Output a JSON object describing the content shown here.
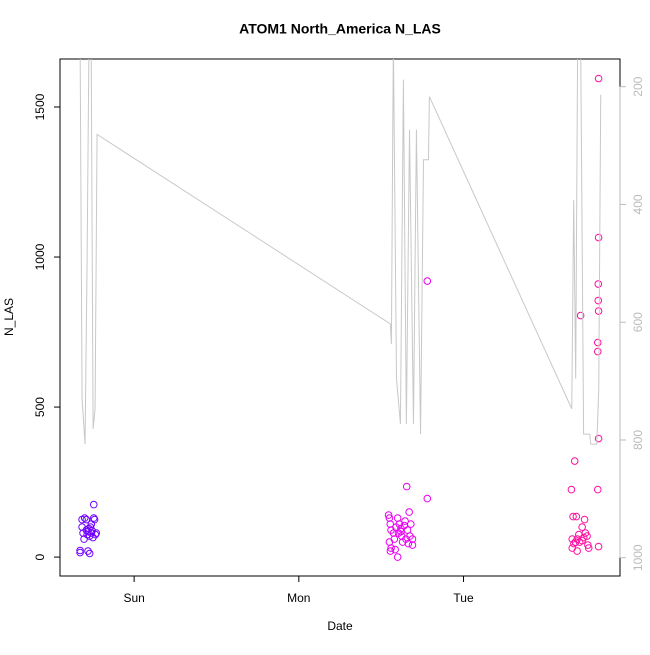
{
  "chart_data": {
    "type": "scatter",
    "title": "ATOM1 North_America N_LAS",
    "xlabel": "Date",
    "ylabel": "N_LAS",
    "xlim": [
      0.55,
      3.95
    ],
    "xticks": [
      {
        "value": 1,
        "label": "Sun"
      },
      {
        "value": 2,
        "label": "Mon"
      },
      {
        "value": 3,
        "label": "Tue"
      }
    ],
    "ylim": [
      -63,
      1660
    ],
    "yticks": [
      0,
      500,
      1000,
      1500
    ],
    "y2lim": [
      1031,
      153
    ],
    "y2ticks": [
      200,
      400,
      600,
      800,
      1000
    ],
    "series": [
      {
        "type": "scatter",
        "color": "#7000ff",
        "x": [
          0.672,
          0.672,
          0.684,
          0.684,
          0.69,
          0.696,
          0.7,
          0.71,
          0.715,
          0.72,
          0.72,
          0.725,
          0.73,
          0.73,
          0.735,
          0.74,
          0.745,
          0.75,
          0.755,
          0.755,
          0.76,
          0.765,
          0.77,
          0.71,
          0.74
        ],
        "values": [
          15,
          22,
          100,
          125,
          80,
          60,
          130,
          90,
          75,
          85,
          20,
          95,
          70,
          12,
          100,
          80,
          88,
          65,
          175,
          130,
          125,
          75,
          80,
          125,
          110
        ]
      },
      {
        "type": "scatter",
        "color": "#e800f0",
        "x": [
          2.545,
          2.55,
          2.555,
          2.56,
          2.55,
          2.556,
          2.56,
          2.575,
          2.58,
          2.585,
          2.59,
          2.6,
          2.605,
          2.6,
          2.61,
          2.62,
          2.625,
          2.63,
          2.64,
          2.645,
          2.65,
          2.655,
          2.66,
          2.665,
          2.67,
          2.675,
          2.68,
          2.69,
          2.78,
          2.78,
          2.69,
          2.62
        ],
        "values": [
          140,
          130,
          110,
          90,
          50,
          20,
          30,
          80,
          60,
          25,
          100,
          130,
          80,
          0,
          110,
          95,
          70,
          50,
          105,
          120,
          60,
          235,
          90,
          45,
          150,
          70,
          110,
          40,
          195,
          920,
          60,
          85
        ]
      },
      {
        "type": "scatter",
        "color": "#ff10a0",
        "x": [
          3.655,
          3.66,
          3.66,
          3.665,
          3.67,
          3.675,
          3.711,
          3.685,
          3.69,
          3.69,
          3.7,
          3.705,
          3.72,
          3.73,
          3.735,
          3.74,
          3.75,
          3.755,
          3.76,
          3.82,
          3.82,
          3.818,
          3.818,
          3.82,
          3.815,
          3.815,
          3.82,
          3.815,
          3.82,
          3.68,
          3.72
        ],
        "values": [
          225,
          60,
          30,
          135,
          45,
          320,
          805,
          135,
          60,
          20,
          75,
          50,
          100,
          65,
          125,
          80,
          70,
          40,
          30,
          1595,
          1065,
          910,
          855,
          820,
          715,
          685,
          395,
          225,
          35,
          50,
          55
        ]
      },
      {
        "type": "line",
        "axis": "y2",
        "color": "#c8c8c8",
        "x": [
          0.672,
          0.684,
          0.702,
          0.714,
          0.726,
          0.739,
          0.751,
          0.763,
          0.775,
          2.556,
          2.562,
          2.574,
          2.593,
          2.617,
          2.635,
          2.653,
          2.672,
          2.696,
          2.714,
          2.739,
          2.757,
          2.787,
          2.793,
          3.657,
          3.669,
          3.681,
          3.693,
          3.711,
          3.729,
          3.766,
          3.772,
          3.809,
          3.821,
          3.833
        ],
        "values": [
          120,
          730,
          807,
          510,
          120,
          120,
          781,
          747,
          281,
          603,
          637,
          120,
          696,
          773,
          188,
          773,
          273,
          773,
          273,
          790,
          324,
          324,
          217,
          747,
          392,
          696,
          120,
          120,
          790,
          790,
          807,
          807,
          714,
          214
        ]
      }
    ]
  }
}
